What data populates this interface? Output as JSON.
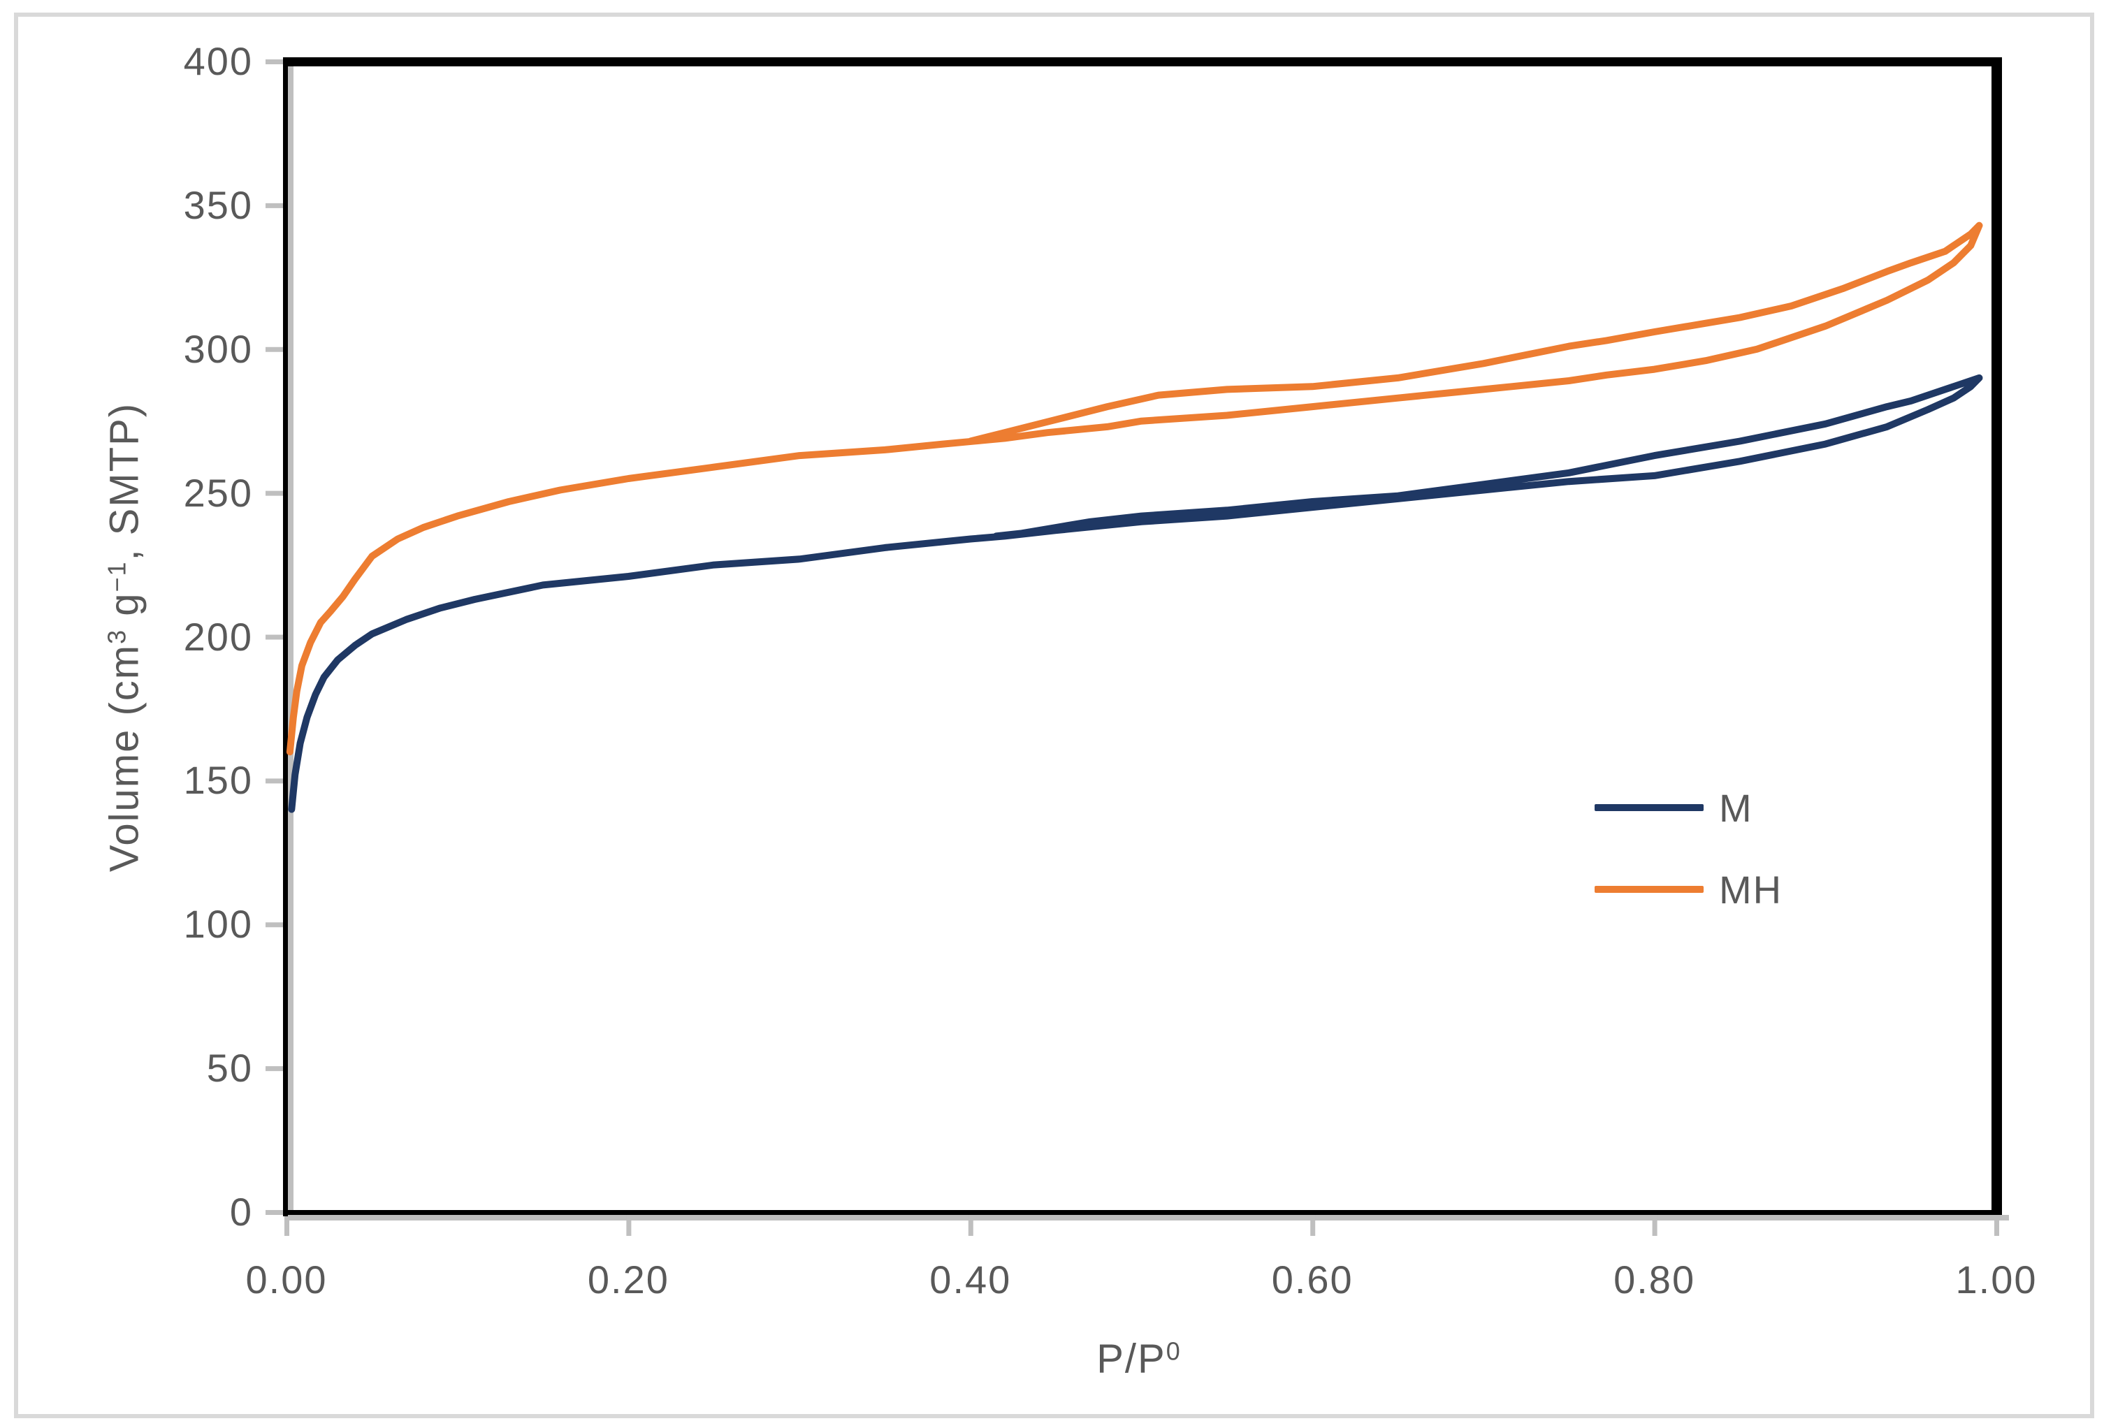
{
  "figure": {
    "background_color": "#ffffff",
    "frame_border_color": "#D9D9D9",
    "plot_border_color": "#000000",
    "axis_shadow_color": "#BFBFBF",
    "tick_color": "#BFBFBF",
    "axis_text_color": "#595959"
  },
  "axes": {
    "x": {
      "title_parts": {
        "base": "P/P",
        "sup": "0"
      },
      "ticks": [
        {
          "label": "0.00",
          "value": 0.0
        },
        {
          "label": "0.20",
          "value": 0.2
        },
        {
          "label": "0.40",
          "value": 0.4
        },
        {
          "label": "0.60",
          "value": 0.6
        },
        {
          "label": "0.80",
          "value": 0.8
        },
        {
          "label": "1.00",
          "value": 1.0
        }
      ]
    },
    "y": {
      "title_parts": {
        "p1": "Volume (cm",
        "s1": "3",
        "p2": " g",
        "s2": "−1",
        "p3": ", SMTP)"
      },
      "ticks": [
        {
          "label": "400",
          "value": 400
        },
        {
          "label": "350",
          "value": 350
        },
        {
          "label": "300",
          "value": 300
        },
        {
          "label": "250",
          "value": 250
        },
        {
          "label": "200",
          "value": 200
        },
        {
          "label": "150",
          "value": 150
        },
        {
          "label": "100",
          "value": 100
        },
        {
          "label": "50",
          "value": 50
        },
        {
          "label": "0",
          "value": 0
        }
      ]
    }
  },
  "legend": {
    "entries": [
      {
        "label": "M",
        "color": "#1F3864"
      },
      {
        "label": "MH",
        "color": "#ED7D31"
      }
    ]
  },
  "chart_data": {
    "type": "line",
    "title": "",
    "xlabel": "P/P⁰",
    "ylabel": "Volume (cm³ g⁻¹, SMTP)",
    "xlim": [
      0,
      1.0
    ],
    "ylim": [
      0,
      400
    ],
    "grid": false,
    "legend_position": "right-middle",
    "x_tick_values": [
      0.0,
      0.2,
      0.4,
      0.6,
      0.8,
      1.0
    ],
    "y_tick_values": [
      0,
      50,
      100,
      150,
      200,
      250,
      300,
      350,
      400
    ],
    "series": [
      {
        "name": "M",
        "color": "#1F3864",
        "line_width": 10,
        "branches": {
          "adsorption": [
            [
              0.003,
              140
            ],
            [
              0.005,
              152
            ],
            [
              0.008,
              163
            ],
            [
              0.012,
              172
            ],
            [
              0.017,
              180
            ],
            [
              0.022,
              186
            ],
            [
              0.03,
              192
            ],
            [
              0.04,
              197
            ],
            [
              0.05,
              201
            ],
            [
              0.07,
              206
            ],
            [
              0.09,
              210
            ],
            [
              0.11,
              213
            ],
            [
              0.15,
              218
            ],
            [
              0.2,
              221
            ],
            [
              0.25,
              225
            ],
            [
              0.3,
              227
            ],
            [
              0.35,
              231
            ],
            [
              0.4,
              234
            ],
            [
              0.42,
              235
            ],
            [
              0.45,
              237
            ],
            [
              0.5,
              240
            ],
            [
              0.55,
              242
            ],
            [
              0.6,
              245
            ],
            [
              0.65,
              248
            ],
            [
              0.7,
              251
            ],
            [
              0.75,
              254
            ],
            [
              0.8,
              256
            ],
            [
              0.85,
              261
            ],
            [
              0.9,
              267
            ],
            [
              0.936,
              273
            ],
            [
              0.96,
              279
            ],
            [
              0.975,
              283
            ],
            [
              0.985,
              287
            ],
            [
              0.99,
              290
            ]
          ],
          "desorption": [
            [
              0.99,
              290
            ],
            [
              0.985,
              289
            ],
            [
              0.97,
              286
            ],
            [
              0.95,
              282
            ],
            [
              0.936,
              280
            ],
            [
              0.9,
              274
            ],
            [
              0.85,
              268
            ],
            [
              0.8,
              263
            ],
            [
              0.75,
              257
            ],
            [
              0.7,
              253
            ],
            [
              0.65,
              249
            ],
            [
              0.6,
              247
            ],
            [
              0.55,
              244
            ],
            [
              0.5,
              242
            ],
            [
              0.47,
              240
            ],
            [
              0.45,
              238
            ],
            [
              0.43,
              236
            ],
            [
              0.415,
              235
            ]
          ]
        }
      },
      {
        "name": "MH",
        "color": "#ED7D31",
        "line_width": 10,
        "branches": {
          "adsorption": [
            [
              0.002,
              160
            ],
            [
              0.004,
              172
            ],
            [
              0.006,
              181
            ],
            [
              0.009,
              190
            ],
            [
              0.014,
              198
            ],
            [
              0.02,
              205
            ],
            [
              0.026,
              209
            ],
            [
              0.033,
              214
            ],
            [
              0.04,
              220
            ],
            [
              0.05,
              228
            ],
            [
              0.065,
              234
            ],
            [
              0.08,
              238
            ],
            [
              0.1,
              242
            ],
            [
              0.13,
              247
            ],
            [
              0.16,
              251
            ],
            [
              0.2,
              255
            ],
            [
              0.25,
              259
            ],
            [
              0.3,
              263
            ],
            [
              0.35,
              265
            ],
            [
              0.384,
              267
            ],
            [
              0.42,
              269
            ],
            [
              0.445,
              271
            ],
            [
              0.48,
              273
            ],
            [
              0.5,
              275
            ],
            [
              0.55,
              277
            ],
            [
              0.6,
              280
            ],
            [
              0.65,
              283
            ],
            [
              0.7,
              286
            ],
            [
              0.75,
              289
            ],
            [
              0.772,
              291
            ],
            [
              0.8,
              293
            ],
            [
              0.83,
              296
            ],
            [
              0.86,
              300
            ],
            [
              0.9,
              308
            ],
            [
              0.936,
              317
            ],
            [
              0.96,
              324
            ],
            [
              0.975,
              330
            ],
            [
              0.985,
              336
            ],
            [
              0.99,
              343
            ]
          ],
          "desorption": [
            [
              0.99,
              343
            ],
            [
              0.985,
              340
            ],
            [
              0.97,
              334
            ],
            [
              0.95,
              330
            ],
            [
              0.936,
              327
            ],
            [
              0.91,
              321
            ],
            [
              0.88,
              315
            ],
            [
              0.85,
              311
            ],
            [
              0.83,
              309
            ],
            [
              0.8,
              306
            ],
            [
              0.772,
              303
            ],
            [
              0.75,
              301
            ],
            [
              0.7,
              295
            ],
            [
              0.65,
              290
            ],
            [
              0.6,
              287
            ],
            [
              0.55,
              286
            ],
            [
              0.51,
              284
            ],
            [
              0.48,
              280
            ],
            [
              0.46,
              277
            ],
            [
              0.44,
              274
            ],
            [
              0.42,
              271
            ],
            [
              0.4,
              268
            ]
          ]
        }
      }
    ]
  }
}
